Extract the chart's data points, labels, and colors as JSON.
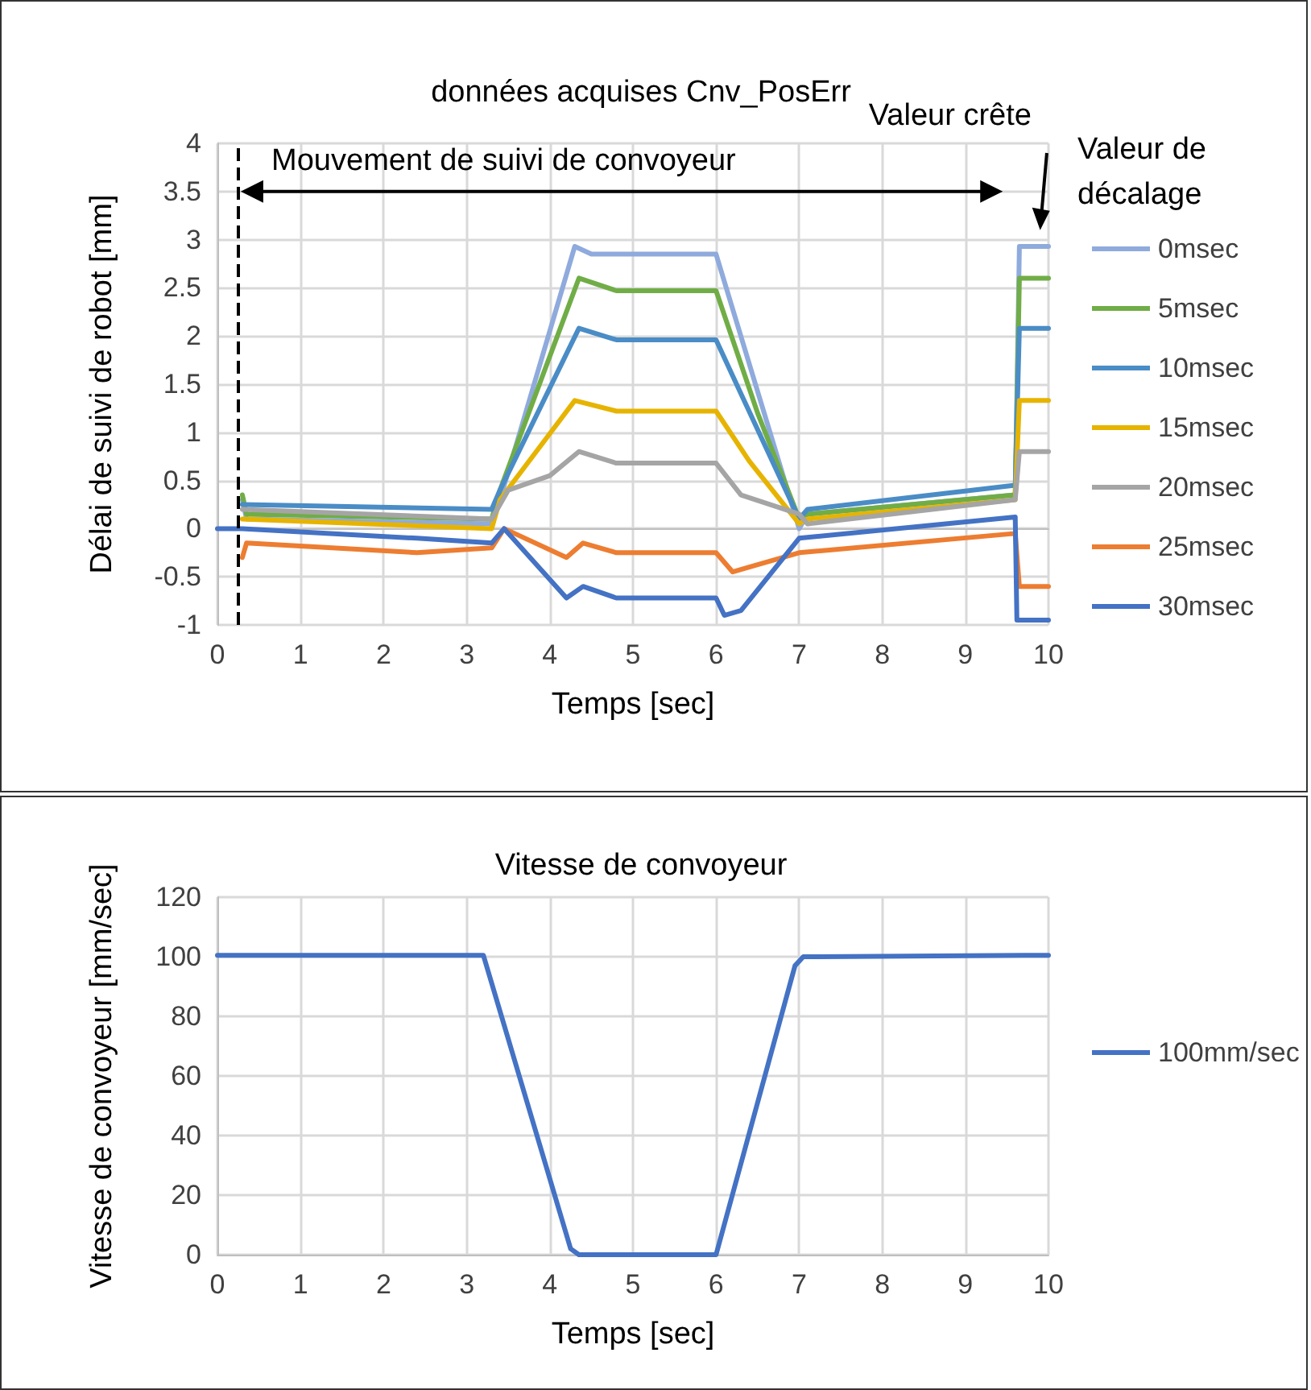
{
  "chart_data": [
    {
      "type": "line",
      "title": "données acquises Cnv_PosErr",
      "xlabel": "Temps [sec]",
      "ylabel": "Délai de suivi de robot [mm]",
      "xlim": [
        0,
        10
      ],
      "xticks": [
        0,
        1,
        2,
        3,
        4,
        5,
        6,
        7,
        8,
        9,
        10
      ],
      "ylim": [
        -1,
        4
      ],
      "yticks": [
        -1,
        -0.5,
        0,
        0.5,
        1,
        1.5,
        2,
        2.5,
        3,
        3.5,
        4
      ],
      "grid": true,
      "legend": "right",
      "marker": "none",
      "line_style": "solid",
      "annotations": [
        "Mouvement de suivi de convoyeur",
        "Valeur crête",
        "Valeur de décalage"
      ],
      "ref_lines": [
        {
          "axis": "x",
          "value": 0.25,
          "color": "#000000",
          "line_style": "dashed"
        }
      ],
      "series": [
        {
          "name": "0msec",
          "color": "#8faadc",
          "x": [
            0.3,
            0.35,
            3.3,
            3.4,
            4.3,
            4.5,
            6.0,
            7.0,
            7.1,
            9.6,
            9.65,
            10
          ],
          "values": [
            0.3,
            0.1,
            0.05,
            0.3,
            2.93,
            2.85,
            2.85,
            0.0,
            0.15,
            0.35,
            2.93,
            2.93
          ]
        },
        {
          "name": "5msec",
          "color": "#70ad47",
          "x": [
            0.3,
            0.35,
            3.3,
            3.4,
            4.35,
            4.8,
            6.0,
            6.5,
            7.0,
            7.1,
            9.6,
            9.65,
            10
          ],
          "values": [
            0.35,
            0.15,
            0.1,
            0.4,
            2.6,
            2.47,
            2.47,
            1.2,
            0.1,
            0.15,
            0.35,
            2.6,
            2.6
          ]
        },
        {
          "name": "10msec",
          "color": "#4a8cc6",
          "x": [
            0.3,
            3.3,
            3.4,
            4.35,
            4.8,
            6.0,
            6.3,
            7.0,
            7.1,
            9.6,
            9.65,
            10
          ],
          "values": [
            0.25,
            0.2,
            0.4,
            2.08,
            1.96,
            1.96,
            1.4,
            0.1,
            0.2,
            0.45,
            2.08,
            2.08
          ]
        },
        {
          "name": "15msec",
          "color": "#e6b400",
          "x": [
            0.3,
            3.3,
            3.4,
            4.3,
            4.8,
            6.0,
            6.4,
            7.0,
            7.1,
            9.6,
            9.65,
            10
          ],
          "values": [
            0.1,
            0.0,
            0.3,
            1.33,
            1.22,
            1.22,
            0.7,
            0.05,
            0.1,
            0.3,
            1.33,
            1.33
          ]
        },
        {
          "name": "20msec",
          "color": "#a5a5a5",
          "x": [
            0.3,
            3.3,
            3.5,
            4.0,
            4.35,
            4.8,
            6.0,
            6.3,
            7.0,
            7.1,
            9.6,
            9.65,
            10
          ],
          "values": [
            0.2,
            0.1,
            0.4,
            0.55,
            0.8,
            0.68,
            0.68,
            0.35,
            0.15,
            0.05,
            0.3,
            0.8,
            0.8
          ]
        },
        {
          "name": "25msec",
          "color": "#ed7d31",
          "x": [
            0.3,
            0.35,
            2.4,
            3.3,
            3.45,
            4.2,
            4.4,
            4.8,
            6.0,
            6.2,
            6.4,
            7.0,
            9.6,
            9.65,
            10
          ],
          "values": [
            -0.3,
            -0.15,
            -0.25,
            -0.2,
            0.0,
            -0.3,
            -0.15,
            -0.25,
            -0.25,
            -0.45,
            -0.4,
            -0.25,
            -0.05,
            -0.6,
            -0.6
          ]
        },
        {
          "name": "30msec",
          "color": "#4472c4",
          "x": [
            0,
            0.3,
            2.4,
            3.3,
            3.45,
            4.2,
            4.4,
            4.8,
            6.0,
            6.1,
            6.3,
            7.0,
            9.6,
            9.62,
            10
          ],
          "values": [
            0,
            0,
            -0.1,
            -0.15,
            0.0,
            -0.72,
            -0.6,
            -0.72,
            -0.72,
            -0.9,
            -0.85,
            -0.1,
            0.12,
            -0.95,
            -0.95
          ]
        }
      ]
    },
    {
      "type": "line",
      "title": "Vitesse de convoyeur",
      "xlabel": "Temps [sec]",
      "ylabel": "Vitesse de convoyeur [mm/sec]",
      "xlim": [
        0,
        10
      ],
      "xticks": [
        0,
        1,
        2,
        3,
        4,
        5,
        6,
        7,
        8,
        9,
        10
      ],
      "ylim": [
        0,
        120
      ],
      "yticks": [
        0,
        20,
        40,
        60,
        80,
        100,
        120
      ],
      "grid": true,
      "legend": "right",
      "marker": "none",
      "line_style": "solid",
      "series": [
        {
          "name": "100mm/sec",
          "color": "#4472c4",
          "x": [
            0,
            3.2,
            4.25,
            4.35,
            6.0,
            6.95,
            7.05,
            10
          ],
          "values": [
            100.5,
            100.5,
            2,
            0,
            0,
            97,
            100,
            100.5
          ]
        }
      ]
    }
  ]
}
